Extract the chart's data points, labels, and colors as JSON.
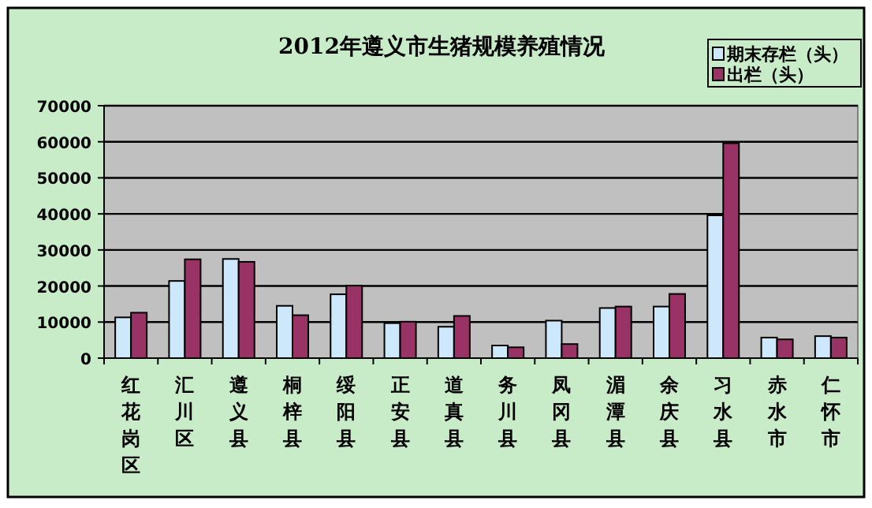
{
  "chart_data": {
    "type": "bar",
    "title": "2012年遵义市生猪规模养殖情况",
    "categories": [
      "红花岗区",
      "汇川区",
      "遵义县",
      "桐梓县",
      "绥阳县",
      "正安县",
      "道真县",
      "务川县",
      "凤冈县",
      "湄潭县",
      "余庆县",
      "习水县",
      "赤水市",
      "仁怀市"
    ],
    "series": [
      {
        "name": "期末存栏（头）",
        "color": "#cce8fa",
        "values": [
          11300,
          21400,
          27500,
          14500,
          17700,
          9700,
          8700,
          3500,
          10400,
          13900,
          14300,
          39600,
          5700,
          6100
        ]
      },
      {
        "name": "出栏（头）",
        "color": "#993366",
        "values": [
          12600,
          27400,
          26700,
          11900,
          20100,
          10100,
          11700,
          3000,
          3900,
          14300,
          17800,
          59600,
          5200,
          5700
        ]
      }
    ],
    "ylim": [
      0,
      70000
    ],
    "yticks": [
      0,
      10000,
      20000,
      30000,
      40000,
      50000,
      60000,
      70000
    ],
    "grid": "y",
    "legend": "top right"
  }
}
